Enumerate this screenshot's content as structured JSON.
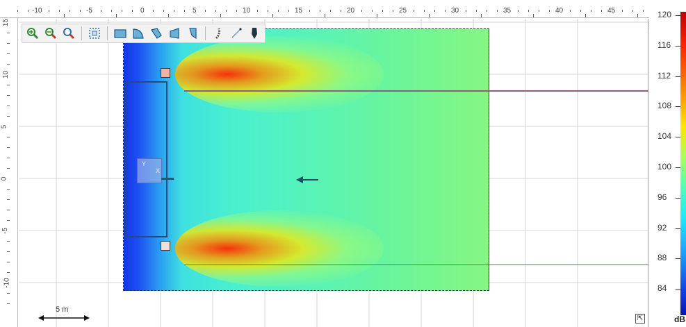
{
  "ruler_x": {
    "unit": "m",
    "labels": [
      "-10",
      "-5",
      "0",
      "5",
      "10",
      "15",
      "20",
      "25",
      "30",
      "35",
      "40",
      "45"
    ]
  },
  "ruler_y": {
    "labels": [
      "15",
      "10",
      "5",
      "0",
      "-5",
      "-10"
    ]
  },
  "toolbar": {
    "groups": [
      [
        "zoom-in-icon",
        "zoom-out-icon",
        "zoom-fit-icon"
      ],
      [
        "selection-frame-icon"
      ],
      [
        "rectangle-shape-icon",
        "arc-shape-icon",
        "quarter-shape-icon",
        "trapezoid-shape-icon",
        "tapered-shape-icon"
      ],
      [
        "curved-line-icon",
        "line-tool-icon",
        "speaker-icon"
      ]
    ]
  },
  "plot": {
    "scale_bar_label": "5 m",
    "source_box_labels": [
      "Y",
      "X"
    ]
  },
  "legend": {
    "unit": "dB",
    "labels": [
      "120",
      "116",
      "112",
      "108",
      "104",
      "100",
      "96",
      "92",
      "88",
      "84"
    ],
    "colors": {
      "max": "#c00000",
      "mid": "#4cffb6",
      "min": "#0a10b8"
    }
  }
}
